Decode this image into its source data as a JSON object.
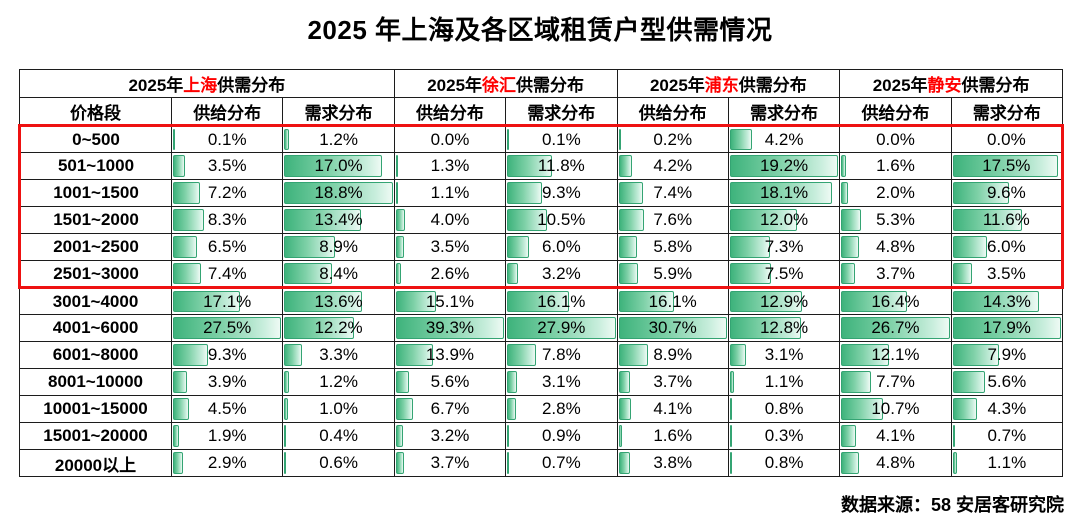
{
  "title": "2025 年上海及各区域租赁户型供需情况",
  "source": "数据来源：58 安居客研究院",
  "colors": {
    "region_accent": "#ff0000",
    "highlight_box": "#ee1111",
    "bar_fill_start": "#3eb37c",
    "bar_fill_end": "#eefaf4",
    "bar_border": "#34a473",
    "grid_border": "#1c1c1c"
  },
  "table": {
    "price_header": "价格段",
    "supply_header": "供给分布",
    "demand_header": "需求分布",
    "groups": [
      {
        "prefix": "2025年",
        "region": "上海",
        "suffix": "供需分布"
      },
      {
        "prefix": "2025年",
        "region": "徐汇",
        "suffix": "供需分布"
      },
      {
        "prefix": "2025年",
        "region": "浦东",
        "suffix": "供需分布"
      },
      {
        "prefix": "2025年",
        "region": "静安",
        "suffix": "供需分布"
      }
    ],
    "highlight": {
      "row_start": 0,
      "row_end": 5,
      "color": "#ee1111"
    },
    "rows": [
      {
        "price": "0~500",
        "values": [
          0.1,
          1.2,
          0.0,
          0.1,
          0.2,
          4.2,
          0.0,
          0.0
        ]
      },
      {
        "price": "501~1000",
        "values": [
          3.5,
          17.0,
          1.3,
          11.8,
          4.2,
          19.2,
          1.6,
          17.5
        ]
      },
      {
        "price": "1001~1500",
        "values": [
          7.2,
          18.8,
          1.1,
          9.3,
          7.4,
          18.1,
          2.0,
          9.6
        ]
      },
      {
        "price": "1501~2000",
        "values": [
          8.3,
          13.4,
          4.0,
          10.5,
          7.6,
          12.0,
          5.3,
          11.6
        ]
      },
      {
        "price": "2001~2500",
        "values": [
          6.5,
          8.9,
          3.5,
          6.0,
          5.8,
          7.3,
          4.8,
          6.0
        ]
      },
      {
        "price": "2501~3000",
        "values": [
          7.4,
          8.4,
          2.6,
          3.2,
          5.9,
          7.5,
          3.7,
          3.5
        ]
      },
      {
        "price": "3001~4000",
        "values": [
          17.1,
          13.6,
          15.1,
          16.1,
          16.1,
          12.9,
          16.4,
          14.3
        ]
      },
      {
        "price": "4001~6000",
        "values": [
          27.5,
          12.2,
          39.3,
          27.9,
          30.7,
          12.8,
          26.7,
          17.9
        ]
      },
      {
        "price": "6001~8000",
        "values": [
          9.3,
          3.3,
          13.9,
          7.8,
          8.9,
          3.1,
          12.1,
          7.9
        ]
      },
      {
        "price": "8001~10000",
        "values": [
          3.9,
          1.2,
          5.6,
          3.1,
          3.7,
          1.1,
          7.7,
          5.6
        ]
      },
      {
        "price": "10001~15000",
        "values": [
          4.5,
          1.0,
          6.7,
          2.8,
          4.1,
          0.8,
          10.7,
          4.3
        ]
      },
      {
        "price": "15001~20000",
        "values": [
          1.9,
          0.4,
          3.2,
          0.9,
          1.6,
          0.3,
          4.1,
          0.7
        ]
      },
      {
        "price": "20000以上",
        "values": [
          2.9,
          0.6,
          3.7,
          0.7,
          3.8,
          0.8,
          4.8,
          1.1
        ]
      }
    ]
  },
  "chart_data": {
    "type": "table",
    "title": "2025 年上海及各区域租赁户型供需情况",
    "categories": [
      "0~500",
      "501~1000",
      "1001~1500",
      "1501~2000",
      "2001~2500",
      "2501~3000",
      "3001~4000",
      "4001~6000",
      "6001~8000",
      "8001~10000",
      "10001~15000",
      "15001~20000",
      "20000以上"
    ],
    "series": [
      {
        "name": "上海-供给分布",
        "values": [
          0.1,
          3.5,
          7.2,
          8.3,
          6.5,
          7.4,
          17.1,
          27.5,
          9.3,
          3.9,
          4.5,
          1.9,
          2.9
        ]
      },
      {
        "name": "上海-需求分布",
        "values": [
          1.2,
          17.0,
          18.8,
          13.4,
          8.9,
          8.4,
          13.6,
          12.2,
          3.3,
          1.2,
          1.0,
          0.4,
          0.6
        ]
      },
      {
        "name": "徐汇-供给分布",
        "values": [
          0.0,
          1.3,
          1.1,
          4.0,
          3.5,
          2.6,
          15.1,
          39.3,
          13.9,
          5.6,
          6.7,
          3.2,
          3.7
        ]
      },
      {
        "name": "徐汇-需求分布",
        "values": [
          0.1,
          11.8,
          9.3,
          10.5,
          6.0,
          3.2,
          16.1,
          27.9,
          7.8,
          3.1,
          2.8,
          0.9,
          0.7
        ]
      },
      {
        "name": "浦东-供给分布",
        "values": [
          0.2,
          4.2,
          7.4,
          7.6,
          5.8,
          5.9,
          16.1,
          30.7,
          8.9,
          3.7,
          4.1,
          1.6,
          3.8
        ]
      },
      {
        "name": "浦东-需求分布",
        "values": [
          4.2,
          19.2,
          18.1,
          12.0,
          7.3,
          7.5,
          12.9,
          12.8,
          3.1,
          1.1,
          0.8,
          0.3,
          0.8
        ]
      },
      {
        "name": "静安-供给分布",
        "values": [
          0.0,
          1.6,
          2.0,
          5.3,
          4.8,
          3.7,
          16.4,
          26.7,
          12.1,
          7.7,
          10.7,
          4.1,
          4.8
        ]
      },
      {
        "name": "静安-需求分布",
        "values": [
          0.0,
          17.5,
          9.6,
          11.6,
          6.0,
          3.5,
          14.3,
          17.9,
          7.9,
          5.6,
          4.3,
          0.7,
          1.1
        ]
      }
    ],
    "unit": "%"
  }
}
